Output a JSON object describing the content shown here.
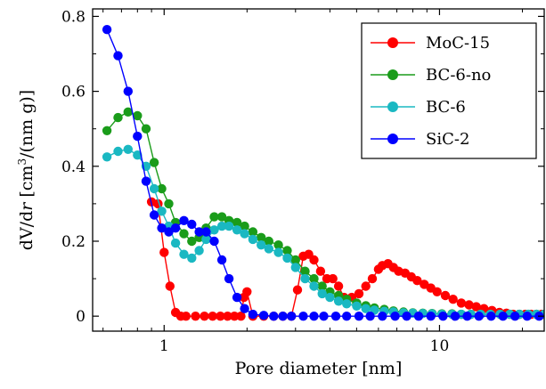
{
  "chart_data": {
    "type": "line",
    "title": "",
    "xlabel": "Pore diameter [nm]",
    "ylabel_parts": {
      "pre": "dV/d",
      "var": "r",
      "mid": "  [cm",
      "sup": "3",
      "post": "/(nm g)]"
    },
    "xscale": "log",
    "xlim": [
      0.55,
      24
    ],
    "ylim": [
      -0.04,
      0.82
    ],
    "xticks": [
      1,
      10
    ],
    "xtick_labels": [
      "1",
      "10"
    ],
    "yticks": [
      0,
      0.2,
      0.4,
      0.6,
      0.8
    ],
    "ytick_labels": [
      "0",
      "0.2",
      "0.4",
      "0.6",
      "0.8"
    ],
    "grid": false,
    "legend_position": "top-right",
    "series": [
      {
        "name": "MoC-15",
        "color": "#ff0000",
        "x": [
          0.9,
          0.95,
          1.0,
          1.05,
          1.1,
          1.15,
          1.2,
          1.3,
          1.4,
          1.5,
          1.6,
          1.7,
          1.8,
          1.9,
          1.95,
          2.0,
          2.1,
          2.3,
          2.5,
          2.7,
          2.9,
          3.05,
          3.2,
          3.35,
          3.5,
          3.7,
          3.9,
          4.1,
          4.3,
          4.5,
          4.8,
          5.1,
          5.4,
          5.7,
          6.0,
          6.2,
          6.5,
          6.8,
          7.1,
          7.5,
          7.9,
          8.3,
          8.8,
          9.3,
          9.8,
          10.5,
          11.2,
          12.0,
          12.8,
          13.6,
          14.5,
          15.5,
          16.5,
          17.5,
          18.5,
          19.5,
          20.5,
          21.5,
          22.5,
          23.5
        ],
        "y": [
          0.305,
          0.3,
          0.17,
          0.08,
          0.01,
          0.0,
          0.0,
          0.0,
          0.0,
          0.0,
          0.0,
          0.0,
          0.0,
          0.0,
          0.05,
          0.065,
          0.0,
          0.0,
          0.0,
          0.0,
          0.0,
          0.07,
          0.16,
          0.165,
          0.15,
          0.12,
          0.1,
          0.1,
          0.08,
          0.05,
          0.05,
          0.06,
          0.08,
          0.1,
          0.125,
          0.135,
          0.14,
          0.13,
          0.12,
          0.115,
          0.105,
          0.095,
          0.085,
          0.075,
          0.065,
          0.055,
          0.045,
          0.035,
          0.03,
          0.025,
          0.02,
          0.015,
          0.01,
          0.008,
          0.005,
          0.005,
          0.005,
          0.005,
          0.005,
          0.005
        ]
      },
      {
        "name": "BC-6-no",
        "color": "#1a9c1a",
        "x": [
          0.62,
          0.68,
          0.74,
          0.8,
          0.86,
          0.92,
          0.98,
          1.04,
          1.1,
          1.18,
          1.26,
          1.34,
          1.42,
          1.52,
          1.62,
          1.72,
          1.84,
          1.96,
          2.1,
          2.25,
          2.4,
          2.6,
          2.8,
          3.0,
          3.25,
          3.5,
          3.75,
          4.0,
          4.3,
          4.6,
          5.0,
          5.4,
          5.8,
          6.3,
          6.8,
          7.4,
          8.0,
          8.7,
          9.4,
          10.2,
          11.1,
          12.0,
          13.0,
          14.1,
          15.3,
          16.6,
          18.0,
          19.5,
          21.0,
          22.5,
          24.0
        ],
        "y": [
          0.495,
          0.53,
          0.545,
          0.535,
          0.5,
          0.41,
          0.34,
          0.3,
          0.25,
          0.22,
          0.2,
          0.21,
          0.235,
          0.265,
          0.265,
          0.255,
          0.25,
          0.24,
          0.225,
          0.21,
          0.2,
          0.19,
          0.175,
          0.15,
          0.12,
          0.1,
          0.08,
          0.065,
          0.055,
          0.045,
          0.035,
          0.028,
          0.022,
          0.018,
          0.014,
          0.011,
          0.009,
          0.008,
          0.007,
          0.006,
          0.006,
          0.005,
          0.005,
          0.005,
          0.005,
          0.005,
          0.005,
          0.005,
          0.005,
          0.005,
          0.005
        ]
      },
      {
        "name": "BC-6",
        "color": "#1ab8c2",
        "x": [
          0.62,
          0.68,
          0.74,
          0.8,
          0.86,
          0.92,
          0.98,
          1.04,
          1.1,
          1.18,
          1.26,
          1.34,
          1.42,
          1.52,
          1.62,
          1.72,
          1.84,
          1.96,
          2.1,
          2.25,
          2.4,
          2.6,
          2.8,
          3.0,
          3.25,
          3.5,
          3.75,
          4.0,
          4.3,
          4.6,
          5.0,
          5.4,
          5.8,
          6.3,
          6.8,
          7.4,
          8.0,
          8.7,
          9.4,
          10.2,
          11.1,
          12.0,
          13.0,
          14.1,
          15.3,
          16.6,
          18.0,
          19.5,
          21.0,
          22.5,
          24.0
        ],
        "y": [
          0.425,
          0.44,
          0.445,
          0.43,
          0.4,
          0.34,
          0.28,
          0.24,
          0.195,
          0.165,
          0.155,
          0.175,
          0.205,
          0.23,
          0.24,
          0.24,
          0.23,
          0.22,
          0.205,
          0.19,
          0.18,
          0.17,
          0.155,
          0.13,
          0.1,
          0.08,
          0.06,
          0.05,
          0.04,
          0.033,
          0.027,
          0.02,
          0.016,
          0.013,
          0.011,
          0.009,
          0.008,
          0.007,
          0.006,
          0.005,
          0.005,
          0.005,
          0.005,
          0.005,
          0.005,
          0.005,
          0.005,
          0.005,
          0.005,
          0.005,
          0.005
        ]
      },
      {
        "name": "SiC-2",
        "color": "#0000ff",
        "x": [
          0.62,
          0.68,
          0.74,
          0.8,
          0.86,
          0.92,
          0.98,
          1.04,
          1.1,
          1.18,
          1.26,
          1.34,
          1.42,
          1.52,
          1.62,
          1.72,
          1.84,
          1.96,
          2.1,
          2.3,
          2.5,
          2.7,
          2.9,
          3.2,
          3.5,
          3.8,
          4.2,
          4.6,
          5.1,
          5.6,
          6.2,
          6.9,
          7.6,
          8.4,
          9.3,
          10.3,
          11.4,
          12.6,
          13.9,
          15.4,
          17.0,
          18.8,
          20.8,
          23.0
        ],
        "y": [
          0.765,
          0.695,
          0.6,
          0.48,
          0.36,
          0.27,
          0.235,
          0.225,
          0.235,
          0.255,
          0.245,
          0.225,
          0.225,
          0.2,
          0.15,
          0.1,
          0.05,
          0.02,
          0.005,
          0.002,
          0.0,
          0.0,
          0.0,
          0.0,
          0.0,
          0.0,
          0.0,
          0.0,
          0.0,
          0.0,
          0.0,
          0.0,
          0.0,
          0.0,
          0.0,
          0.0,
          0.0,
          0.0,
          0.0,
          0.0,
          0.0,
          0.0,
          0.0,
          0.0
        ]
      }
    ]
  }
}
